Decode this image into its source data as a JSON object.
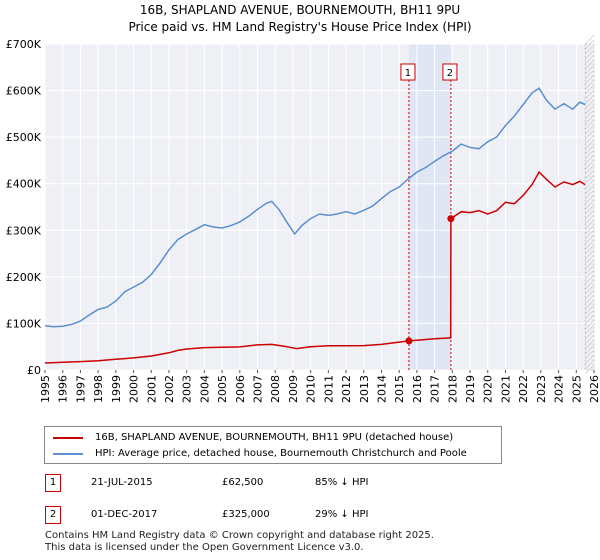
{
  "title": "16B, SHAPLAND AVENUE, BOURNEMOUTH, BH11 9PU",
  "subtitle": "Price paid vs. HM Land Registry's House Price Index (HPI)",
  "chart_data": {
    "type": "line",
    "title": "16B, SHAPLAND AVENUE, BOURNEMOUTH, BH11 9PU",
    "xlabel": "",
    "ylabel": "",
    "xlim": [
      1995,
      2026
    ],
    "ylim": [
      0,
      700000
    ],
    "y_ticks": [
      0,
      100000,
      200000,
      300000,
      400000,
      500000,
      600000,
      700000
    ],
    "y_tick_labels": [
      "£0",
      "£100K",
      "£200K",
      "£300K",
      "£400K",
      "£500K",
      "£600K",
      "£700K"
    ],
    "x_ticks": [
      1995,
      1996,
      1997,
      1998,
      1999,
      2000,
      2001,
      2002,
      2003,
      2004,
      2005,
      2006,
      2007,
      2008,
      2009,
      2010,
      2011,
      2012,
      2013,
      2014,
      2015,
      2016,
      2017,
      2018,
      2019,
      2020,
      2021,
      2022,
      2023,
      2024,
      2025,
      2026
    ],
    "grid": true,
    "series": [
      {
        "name": "16B, SHAPLAND AVENUE, BOURNEMOUTH, BH11 9PU (detached house)",
        "color": "#cc0000",
        "x": [
          1995.0,
          1996.0,
          1997.0,
          1998.0,
          1999.0,
          2000.0,
          2001.0,
          2002.0,
          2002.5,
          2003.0,
          2004.0,
          2005.0,
          2006.0,
          2007.0,
          2007.8,
          2008.5,
          2009.2,
          2010.0,
          2011.0,
          2012.0,
          2013.0,
          2014.0,
          2015.0,
          2015.55,
          2016.0,
          2017.0,
          2017.91,
          2017.92,
          2018.5,
          2019.0,
          2019.5,
          2020.0,
          2020.5,
          2021.0,
          2021.5,
          2022.0,
          2022.5,
          2022.9,
          2023.3,
          2023.8,
          2024.3,
          2024.8,
          2025.2,
          2025.5
        ],
        "y": [
          15000,
          16500,
          18000,
          20000,
          23000,
          26000,
          30000,
          37000,
          42000,
          45000,
          48000,
          49000,
          49500,
          54000,
          55000,
          51000,
          46000,
          50000,
          52000,
          52000,
          52500,
          55000,
          60000,
          62500,
          64000,
          67000,
          69000,
          325000,
          340000,
          338000,
          342000,
          335000,
          342000,
          360000,
          357000,
          375000,
          398000,
          425000,
          410000,
          393000,
          404000,
          398000,
          405000,
          398000
        ]
      },
      {
        "name": "HPI: Average price, detached house, Bournemouth Christchurch and Poole",
        "color": "#5b8fd1",
        "x": [
          1995.0,
          1995.5,
          1996.0,
          1996.5,
          1997.0,
          1997.5,
          1998.0,
          1998.5,
          1999.0,
          1999.5,
          2000.0,
          2000.5,
          2001.0,
          2001.5,
          2002.0,
          2002.5,
          2003.0,
          2003.5,
          2004.0,
          2004.5,
          2005.0,
          2005.5,
          2006.0,
          2006.5,
          2007.0,
          2007.5,
          2007.8,
          2008.2,
          2008.7,
          2009.1,
          2009.5,
          2010.0,
          2010.5,
          2011.0,
          2011.5,
          2012.0,
          2012.5,
          2013.0,
          2013.5,
          2014.0,
          2014.5,
          2015.0,
          2015.5,
          2016.0,
          2016.5,
          2017.0,
          2017.5,
          2018.0,
          2018.5,
          2019.0,
          2019.5,
          2020.0,
          2020.5,
          2021.0,
          2021.5,
          2022.0,
          2022.5,
          2022.9,
          2023.3,
          2023.8,
          2024.3,
          2024.8,
          2025.2,
          2025.5
        ],
        "y": [
          95000,
          93000,
          94000,
          98000,
          105000,
          118000,
          130000,
          135000,
          148000,
          168000,
          178000,
          188000,
          205000,
          230000,
          258000,
          280000,
          292000,
          302000,
          312000,
          307000,
          305000,
          310000,
          318000,
          330000,
          345000,
          358000,
          362000,
          345000,
          315000,
          292000,
          310000,
          325000,
          335000,
          332000,
          335000,
          340000,
          335000,
          343000,
          352000,
          368000,
          383000,
          393000,
          410000,
          425000,
          435000,
          448000,
          460000,
          470000,
          485000,
          478000,
          475000,
          490000,
          500000,
          525000,
          545000,
          570000,
          595000,
          605000,
          580000,
          560000,
          572000,
          560000,
          575000,
          570000
        ]
      }
    ],
    "markers": [
      {
        "label": "1",
        "x": 2015.55,
        "y": 62500
      },
      {
        "label": "2",
        "x": 2017.92,
        "y": 325000
      }
    ]
  },
  "legend": {
    "items": [
      {
        "label": "16B, SHAPLAND AVENUE, BOURNEMOUTH, BH11 9PU (detached house)",
        "color": "#cc0000"
      },
      {
        "label": "HPI: Average price, detached house, Bournemouth Christchurch and Poole",
        "color": "#5b8fd1"
      }
    ]
  },
  "transactions": [
    {
      "num": "1",
      "date": "21-JUL-2015",
      "price": "£62,500",
      "hpi": "85% ↓ HPI"
    },
    {
      "num": "2",
      "date": "01-DEC-2017",
      "price": "£325,000",
      "hpi": "29% ↓ HPI"
    }
  ],
  "footer": {
    "line1": "Contains HM Land Registry data © Crown copyright and database right 2025.",
    "line2": "This data is licensed under the Open Government Licence v3.0."
  }
}
